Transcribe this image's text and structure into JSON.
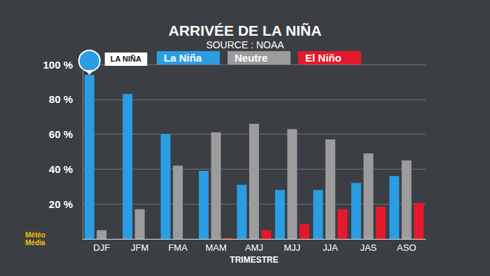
{
  "chart_data": {
    "type": "bar",
    "title": "ARRIVÉE DE LA NIÑA",
    "subtitle": "SOURCE : NOAA",
    "x_label": "TRIMESTRE",
    "categories": [
      "DJF",
      "JFM",
      "FMA",
      "MAM",
      "AMJ",
      "MJJ",
      "JJA",
      "JAS",
      "ASO"
    ],
    "series": [
      {
        "name": "La Niña",
        "color": "#2b9de3",
        "values": [
          94,
          83,
          60,
          39,
          31,
          28,
          28,
          32,
          36
        ]
      },
      {
        "name": "Neutre",
        "color": "#9c9c9c",
        "values": [
          5,
          17,
          42,
          61,
          66,
          63,
          57,
          49,
          45
        ]
      },
      {
        "name": "El Niño",
        "color": "#e5182c",
        "values": [
          0,
          0,
          0,
          0.5,
          5,
          8.5,
          17,
          18.5,
          20.5
        ]
      }
    ],
    "ylim": [
      0,
      100
    ],
    "yticks": [
      {
        "value": 20,
        "label": "20 %"
      },
      {
        "value": 40,
        "label": "40 %"
      },
      {
        "value": 60,
        "label": "60 %"
      },
      {
        "value": 80,
        "label": "80 %"
      },
      {
        "value": 100,
        "label": "100 %"
      }
    ],
    "grid": true,
    "legend": "top",
    "annotations": [
      {
        "text": "LA NIÑA",
        "x": "DJF",
        "series": "La Niña"
      },
      {
        "text": "Météo Média"
      }
    ]
  }
}
